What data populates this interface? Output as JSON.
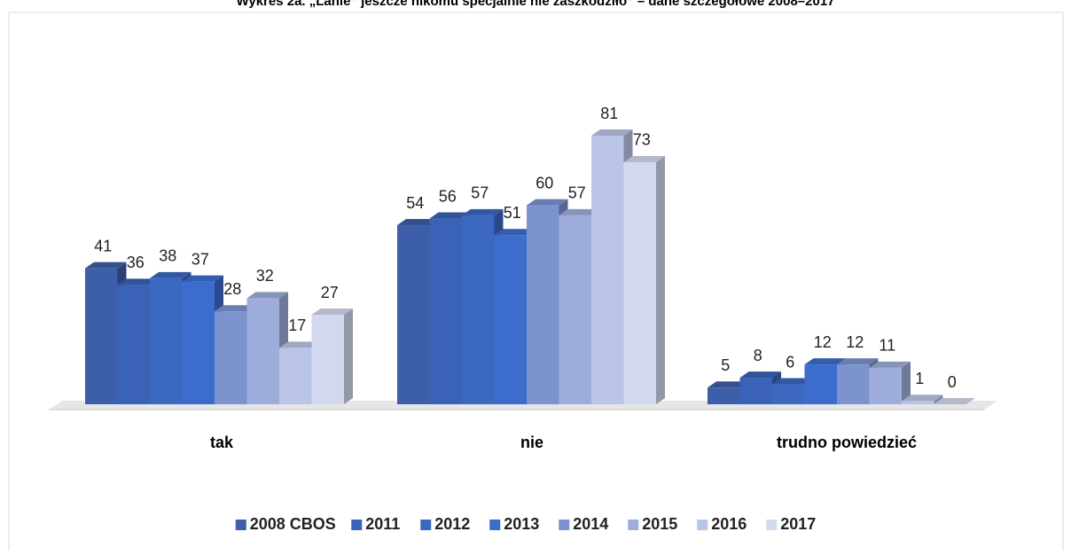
{
  "chart_data": {
    "type": "bar3d",
    "title": "Wykres 2a. „Lanie” jeszcze nikomu specjalnie nie zaszkodziło” – dane szczegółowe 2008–2017",
    "categories": [
      "tak",
      "nie",
      "trudno powiedzieć"
    ],
    "series": [
      {
        "name": "2008 CBOS",
        "color": "#3d5ea8",
        "values": [
          41,
          54,
          5
        ]
      },
      {
        "name": "2011",
        "color": "#3a62b6",
        "values": [
          36,
          56,
          8
        ]
      },
      {
        "name": "2012",
        "color": "#3b68c1",
        "values": [
          38,
          57,
          6
        ]
      },
      {
        "name": "2013",
        "color": "#3c6dcc",
        "values": [
          37,
          51,
          12
        ]
      },
      {
        "name": "2014",
        "color": "#7d93d0",
        "values": [
          28,
          60,
          12
        ]
      },
      {
        "name": "2015",
        "color": "#9eaddb",
        "values": [
          32,
          57,
          11
        ]
      },
      {
        "name": "2016",
        "color": "#bac4e6",
        "values": [
          17,
          81,
          1
        ]
      },
      {
        "name": "2017",
        "color": "#d2d8ee",
        "values": [
          27,
          73,
          0
        ]
      }
    ],
    "legend": "bottom"
  }
}
